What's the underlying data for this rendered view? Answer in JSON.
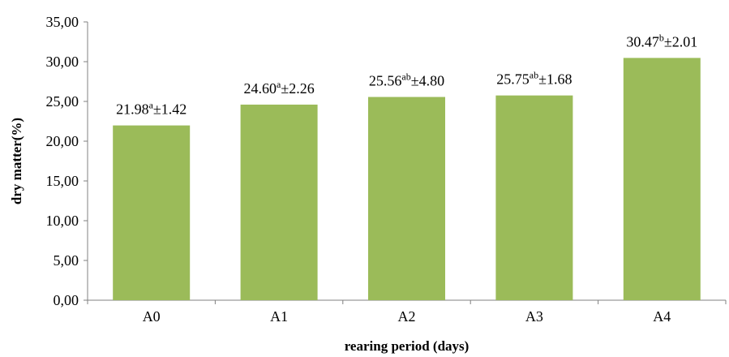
{
  "chart_data": {
    "type": "bar",
    "title": "",
    "xlabel": "rearing period (days)",
    "ylabel": "dry matter(%)",
    "categories": [
      "A0",
      "A1",
      "A2",
      "A3",
      "A4"
    ],
    "values": [
      21.98,
      24.6,
      25.56,
      25.75,
      30.47
    ],
    "data_labels": [
      {
        "value": "21.98",
        "superscript": "a",
        "sd": "±1.42"
      },
      {
        "value": "24.60",
        "superscript": "a",
        "sd": "±2.26"
      },
      {
        "value": "25.56",
        "superscript": "ab",
        "sd": "±4.80"
      },
      {
        "value": "25.75",
        "superscript": "ab",
        "sd": "±1.68"
      },
      {
        "value": "30.47",
        "superscript": "b",
        "sd": "±2.01"
      }
    ],
    "ylim": [
      0,
      35
    ],
    "yticks": [
      0,
      5,
      10,
      15,
      20,
      25,
      30,
      35
    ],
    "ytick_labels": [
      "0,00",
      "5,00",
      "10,00",
      "15,00",
      "20,00",
      "25,00",
      "30,00",
      "35,00"
    ],
    "bar_color": "#9bbb59",
    "grid": false,
    "legend": "none"
  }
}
